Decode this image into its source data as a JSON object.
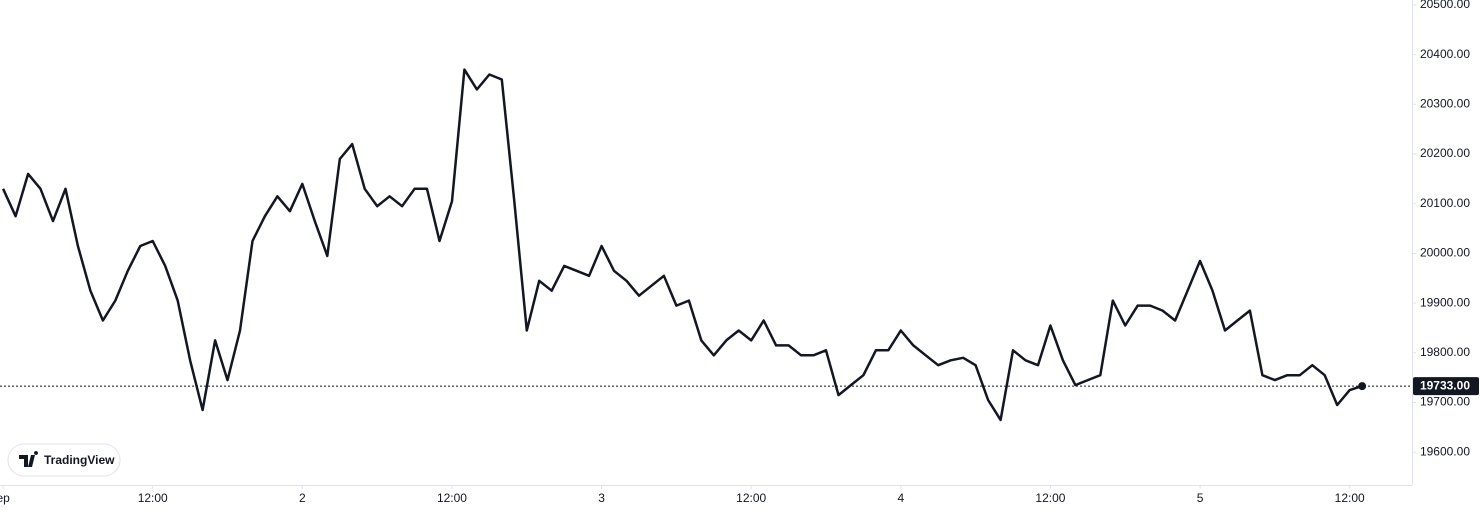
{
  "chart_data": {
    "type": "line",
    "color": "#131722",
    "values": [
      20130,
      20075,
      20160,
      20130,
      20065,
      20130,
      20015,
      19925,
      19865,
      19905,
      19965,
      20015,
      20025,
      19975,
      19905,
      19785,
      19685,
      19825,
      19745,
      19845,
      20025,
      20075,
      20115,
      20085,
      20140,
      20065,
      19995,
      20190,
      20220,
      20130,
      20095,
      20115,
      20095,
      20130,
      20130,
      20025,
      20105,
      20370,
      20330,
      20360,
      20350,
      20105,
      19845,
      19945,
      19925,
      19975,
      19965,
      19955,
      20015,
      19965,
      19945,
      19915,
      19935,
      19955,
      19895,
      19905,
      19825,
      19795,
      19825,
      19845,
      19825,
      19865,
      19815,
      19815,
      19795,
      19795,
      19805,
      19715,
      19735,
      19755,
      19805,
      19805,
      19845,
      19815,
      19795,
      19775,
      19785,
      19790,
      19775,
      19705,
      19665,
      19805,
      19785,
      19775,
      19855,
      19785,
      19735,
      19745,
      19755,
      19905,
      19855,
      19895,
      19895,
      19885,
      19865,
      19925,
      19985,
      19925,
      19845,
      19865,
      19885,
      19755,
      19745,
      19755,
      19755,
      19775,
      19755,
      19695,
      19725,
      19733
    ],
    "xlim": [
      -0.25,
      113
    ],
    "xticks": [
      {
        "value": 0,
        "label": "ep"
      },
      {
        "value": 12,
        "label": "12:00"
      },
      {
        "value": 24,
        "label": "2"
      },
      {
        "value": 36,
        "label": "12:00"
      },
      {
        "value": 48,
        "label": "3"
      },
      {
        "value": 60,
        "label": "12:00"
      },
      {
        "value": 72,
        "label": "4"
      },
      {
        "value": 84,
        "label": "12:00"
      },
      {
        "value": 96,
        "label": "5"
      },
      {
        "value": 108,
        "label": "12:00"
      }
    ],
    "ylim": [
      19534,
      20510
    ],
    "yticks": [
      {
        "value": 19600,
        "label": "19600.00"
      },
      {
        "value": 19700,
        "label": "19700.00"
      },
      {
        "value": 19800,
        "label": "19800.00"
      },
      {
        "value": 19900,
        "label": "19900.00"
      },
      {
        "value": 20000,
        "label": "20000.00"
      },
      {
        "value": 20100,
        "label": "20100.00"
      },
      {
        "value": 20200,
        "label": "20200.00"
      },
      {
        "value": 20300,
        "label": "20300.00"
      },
      {
        "value": 20400,
        "label": "20400.00"
      },
      {
        "value": 20500,
        "label": "20500.00"
      }
    ],
    "last_price": {
      "value": 19733,
      "label": "19733.00"
    },
    "watermark": "TradingView"
  }
}
